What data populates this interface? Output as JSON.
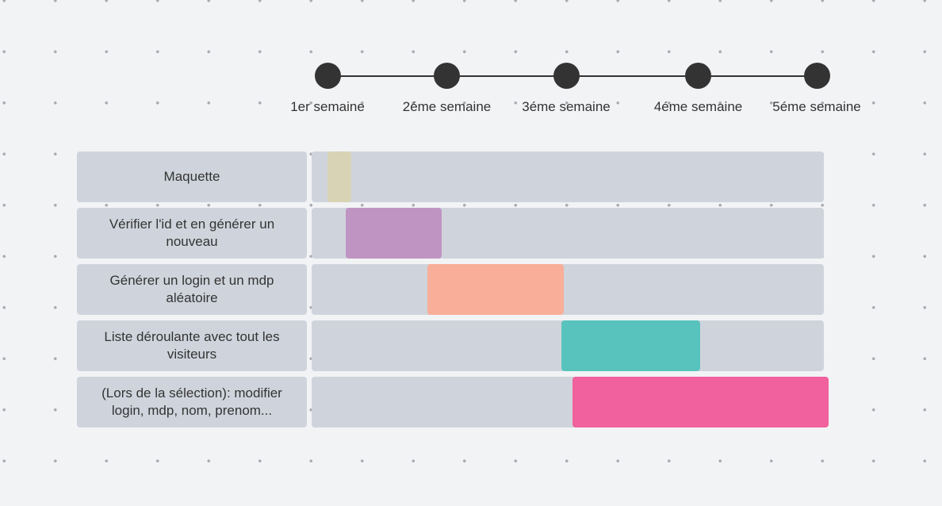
{
  "timeline": {
    "weeks": [
      "1er semaine",
      "2éme semaine",
      "3éme semaine",
      "4éme semaine",
      "5éme semaine"
    ],
    "dot_color": "#333333"
  },
  "tasks": [
    {
      "label": "Maquette",
      "start_week": 1.0,
      "end_week": 1.2,
      "color": "#d8d3b5"
    },
    {
      "label": "Vérifier l'id et en générer un nouveau",
      "start_week": 1.15,
      "end_week": 1.96,
      "color": "#c094c2"
    },
    {
      "label": "Générer un login et un mdp aléatoire",
      "start_week": 1.84,
      "end_week": 2.98,
      "color": "#f8ae98"
    },
    {
      "label": "Liste déroulante avec tout les visiteurs",
      "start_week": 2.96,
      "end_week": 4.02,
      "color": "#58c3bd"
    },
    {
      "label": "(Lors de la sélection): modifier login, mdp, nom, prenom...",
      "start_week": 3.05,
      "end_week": 5.1,
      "color": "#f0619e"
    }
  ]
}
